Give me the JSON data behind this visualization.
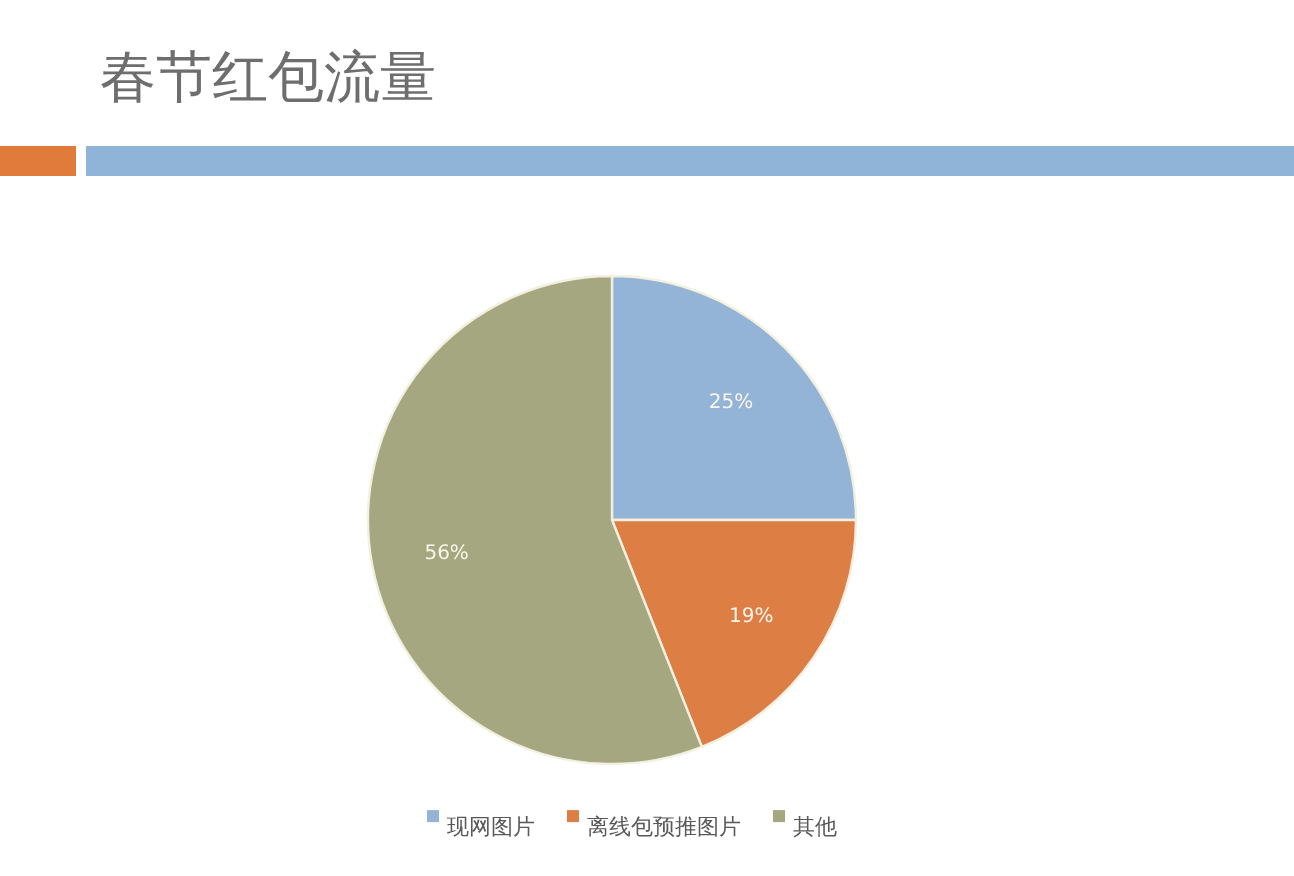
{
  "chart_data": {
    "type": "pie",
    "title": "春节红包流量",
    "categories": [
      "现网图片",
      "离线包预推图片",
      "其他"
    ],
    "values": [
      25,
      19,
      56
    ],
    "colors": [
      "#93b4d6",
      "#dd7e45",
      "#a4a77f"
    ],
    "value_labels": [
      "25%",
      "19%",
      "56%"
    ],
    "legend": "bottom"
  }
}
